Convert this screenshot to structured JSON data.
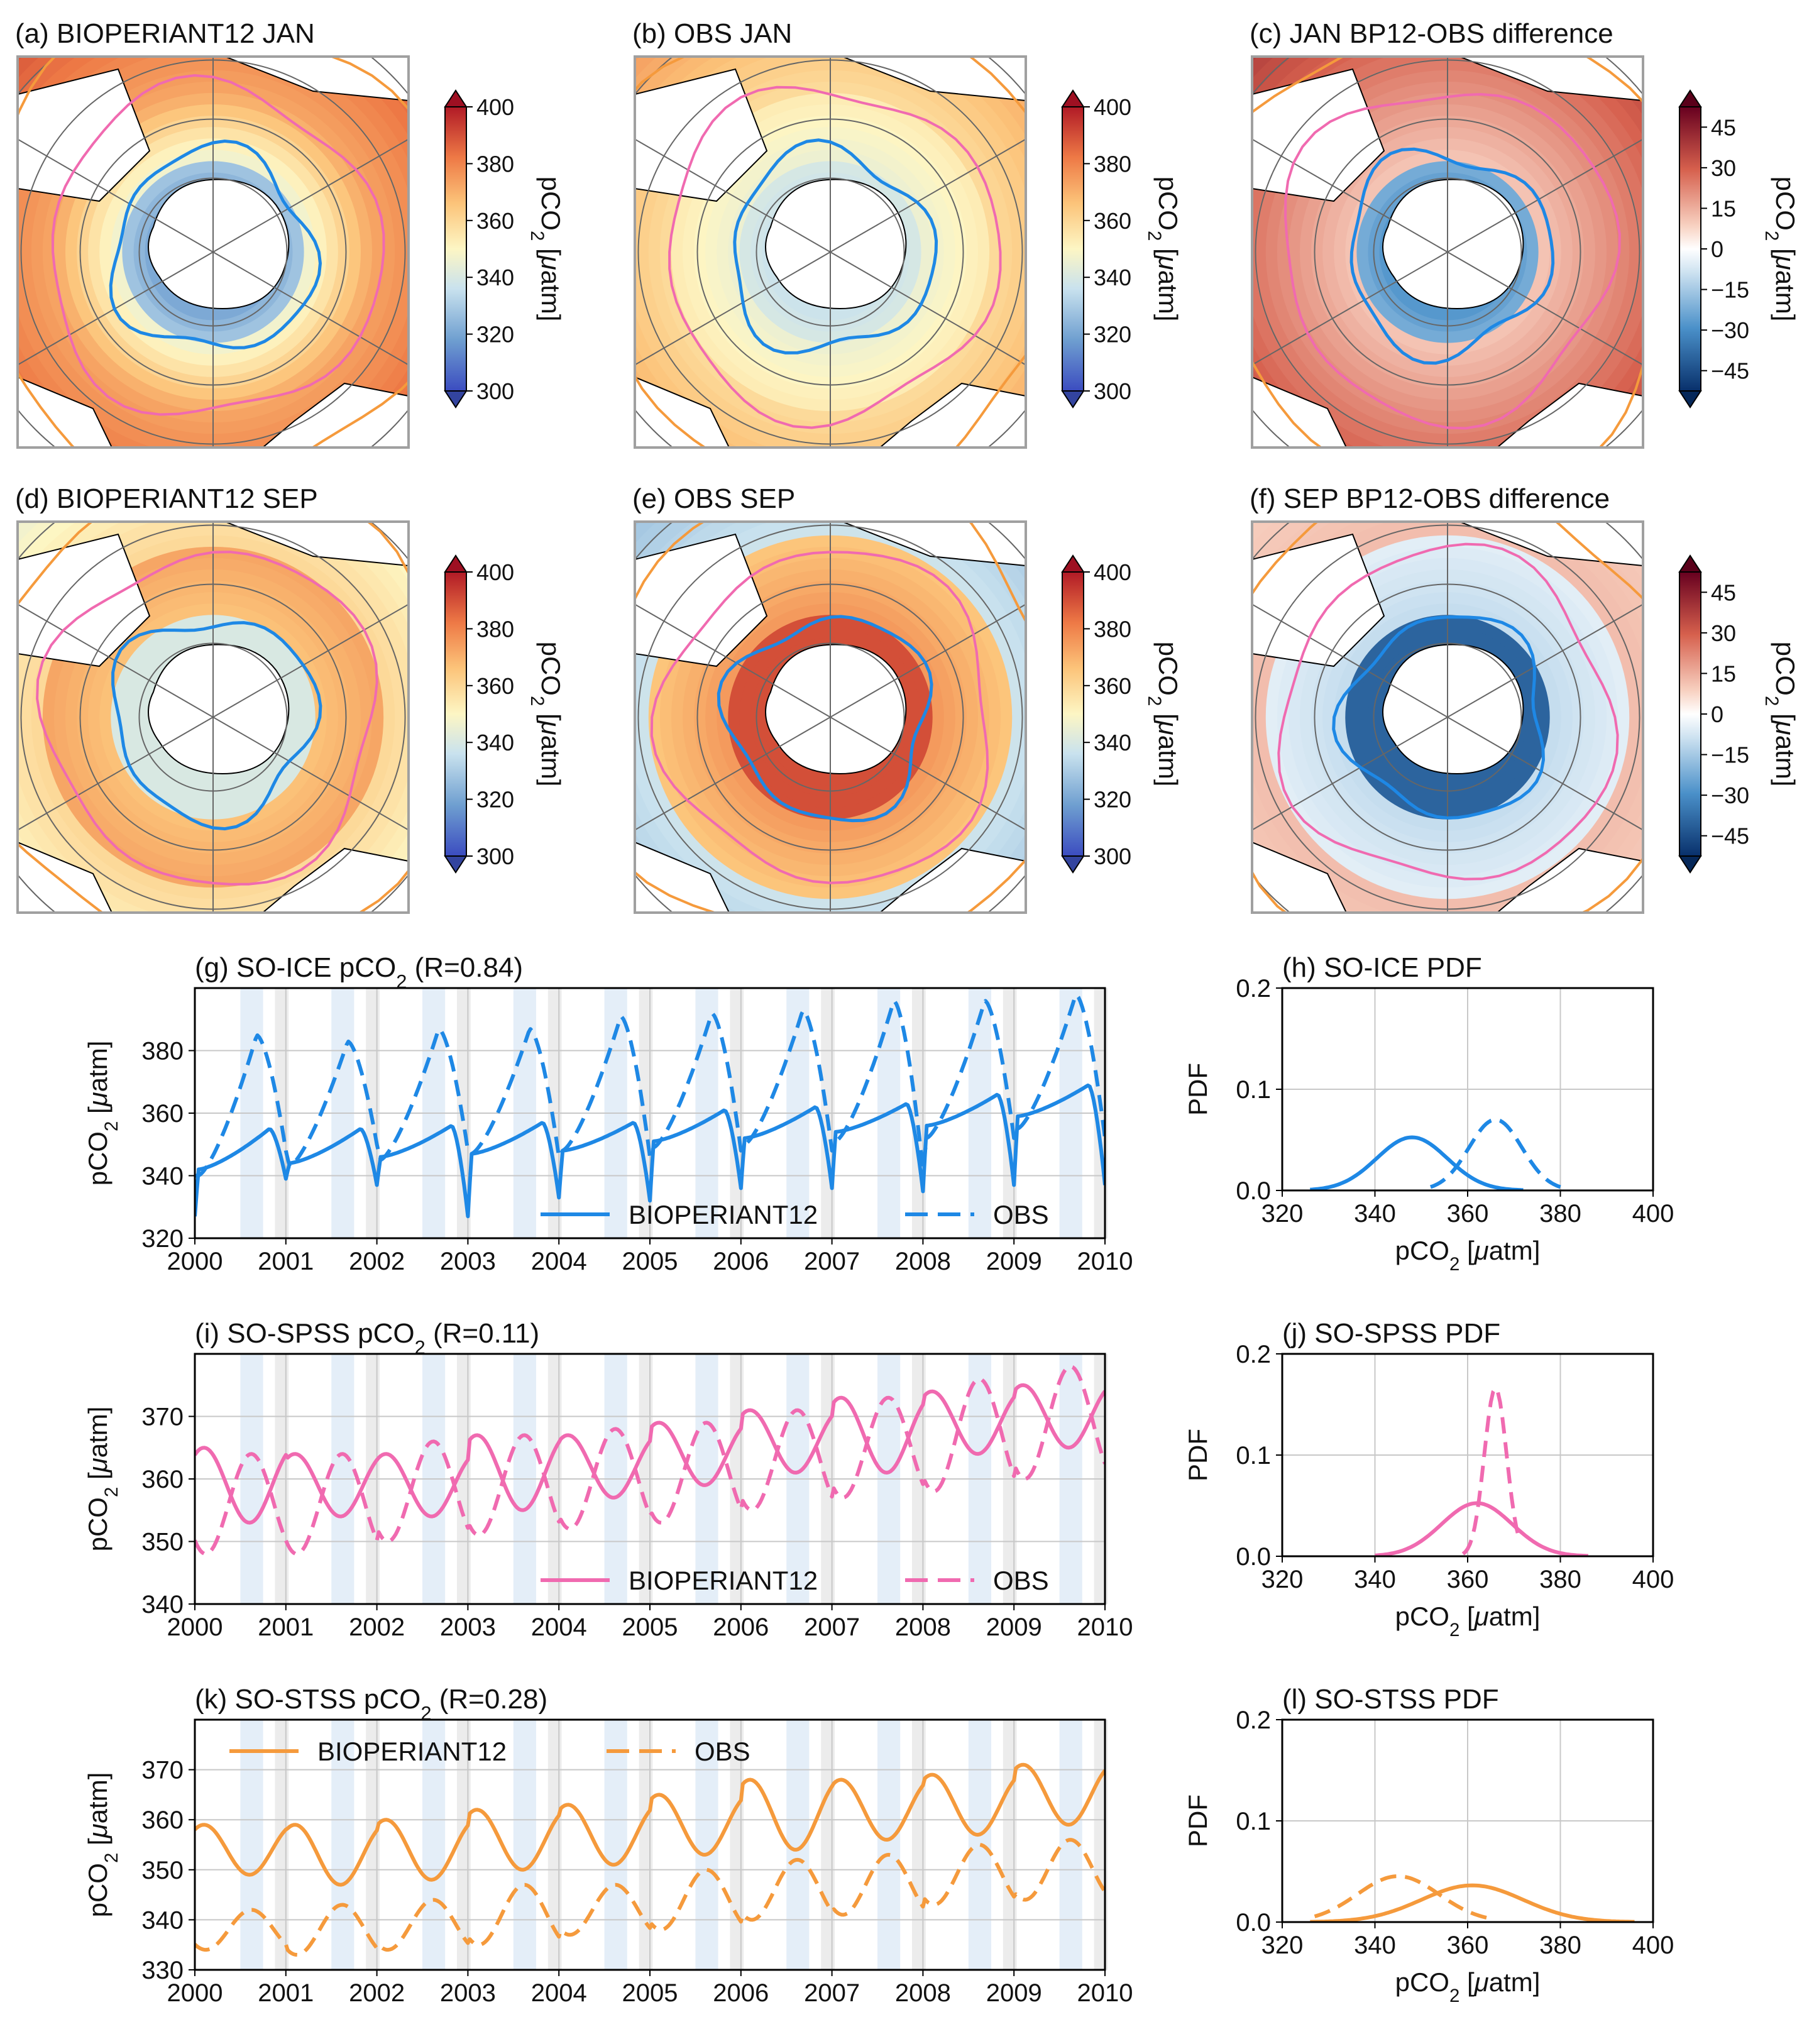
{
  "colors": {
    "ice": "#1e88e5",
    "spss": "#f06ab0",
    "stss": "#f59a3c",
    "grid": "#c8c8c8",
    "axis": "#000000",
    "land": "#ffffff",
    "frame": "#a0a0a0",
    "jan_shade": "#e4eef8",
    "sep_shade": "#ececec"
  },
  "units": {
    "mu": "μ"
  },
  "maps": [
    {
      "id": "a",
      "title": "(a) BIOPERIANT12 JAN",
      "cbar_label": "pCO2 [μatm]",
      "cbar_ticks": [
        "400",
        "380",
        "360",
        "340",
        "320",
        "300"
      ],
      "cmap": "seq",
      "field": "bp12_jan"
    },
    {
      "id": "b",
      "title": "(b) OBS JAN",
      "cbar_label": "pCO2 [μatm]",
      "cbar_ticks": [
        "400",
        "380",
        "360",
        "340",
        "320",
        "300"
      ],
      "cmap": "seq",
      "field": "obs_jan"
    },
    {
      "id": "c",
      "title": "(c) JAN BP12-OBS difference",
      "cbar_label": "pCO2 [μatm]",
      "cbar_ticks": [
        "45",
        "30",
        "15",
        "0",
        "−15",
        "−30",
        "−45"
      ],
      "cmap": "div",
      "field": "diff_jan"
    },
    {
      "id": "d",
      "title": "(d) BIOPERIANT12 SEP",
      "cbar_label": "pCO2 [μatm]",
      "cbar_ticks": [
        "400",
        "380",
        "360",
        "340",
        "320",
        "300"
      ],
      "cmap": "seq",
      "field": "bp12_sep"
    },
    {
      "id": "e",
      "title": "(e) OBS SEP",
      "cbar_label": "pCO2 [μatm]",
      "cbar_ticks": [
        "400",
        "380",
        "360",
        "340",
        "320",
        "300"
      ],
      "cmap": "seq",
      "field": "obs_sep"
    },
    {
      "id": "f",
      "title": "(f) SEP BP12-OBS difference",
      "cbar_label": "pCO2 [μatm]",
      "cbar_ticks": [
        "45",
        "30",
        "15",
        "0",
        "−15",
        "−30",
        "−45"
      ],
      "cmap": "div",
      "field": "diff_sep"
    }
  ],
  "chart_data": [
    {
      "id": "g",
      "type": "line",
      "title": "(g) SO-ICE pCO2 (R=0.84)",
      "ylabel": "pCO2 [μatm]",
      "xlim": [
        2000,
        2010
      ],
      "ylim": [
        320,
        400
      ],
      "xticks": [
        2000,
        2001,
        2002,
        2003,
        2004,
        2005,
        2006,
        2007,
        2008,
        2009,
        2010
      ],
      "yticks": [
        320,
        340,
        360,
        380
      ],
      "legend": "bottom-right",
      "series": [
        {
          "name": "BIOPERIANT12",
          "style": "solid",
          "color": "#1e88e5",
          "base": [
            342,
            344,
            346,
            347,
            348,
            351,
            352,
            354,
            356,
            359
          ],
          "amp": [
            13,
            11,
            10,
            10,
            9,
            10,
            10,
            9,
            10,
            10
          ],
          "phase": 0.82,
          "min": [
            327,
            339,
            337,
            327,
            333,
            332,
            336,
            336,
            335,
            337
          ]
        },
        {
          "name": "OBS",
          "style": "dashed",
          "color": "#1e88e5",
          "base": [
            340,
            343,
            345,
            347,
            348,
            349,
            350,
            351,
            352,
            355
          ],
          "amp": [
            45,
            40,
            42,
            40,
            43,
            43,
            43,
            45,
            44,
            43
          ],
          "phase": 0.68,
          "min": [
            340,
            348,
            350,
            348,
            346,
            346,
            348,
            348,
            342,
            352
          ]
        }
      ]
    },
    {
      "id": "h",
      "type": "line",
      "title": "(h) SO-ICE PDF",
      "xlabel": "pCO2 [μatm]",
      "ylabel": "PDF",
      "xlim": [
        320,
        400
      ],
      "ylim": [
        0,
        0.2
      ],
      "xticks": [
        320,
        340,
        360,
        380,
        400
      ],
      "yticks": [
        "0.0",
        "0.1",
        "0.2"
      ],
      "series": [
        {
          "name": "BIOPERIANT12",
          "style": "solid",
          "color": "#1e88e5",
          "mean": 348,
          "sd": 7.6,
          "range": [
            326,
            372
          ]
        },
        {
          "name": "OBS",
          "style": "dashed",
          "color": "#1e88e5",
          "mean": 366,
          "sd": 5.7,
          "range": [
            352,
            381
          ]
        }
      ]
    },
    {
      "id": "i",
      "type": "line",
      "title": "(i) SO-SPSS pCO2 (R=0.11)",
      "ylabel": "pCO2 [μatm]",
      "xlim": [
        2000,
        2010
      ],
      "ylim": [
        340,
        380
      ],
      "xticks": [
        2000,
        2001,
        2002,
        2003,
        2004,
        2005,
        2006,
        2007,
        2008,
        2009,
        2010
      ],
      "yticks": [
        340,
        350,
        360,
        370
      ],
      "legend": "bottom-right",
      "series": [
        {
          "name": "BIOPERIANT12",
          "style": "solid",
          "color": "#f06ab0",
          "base": [
            359,
            359,
            359,
            361,
            362,
            364,
            366,
            367,
            369,
            370
          ],
          "amp": [
            6,
            5,
            5,
            6,
            5,
            5,
            5,
            6,
            5,
            5
          ],
          "phase": 0.1
        },
        {
          "name": "OBS",
          "style": "dashed",
          "color": "#f06ab0",
          "base": [
            356,
            356,
            358,
            359,
            360,
            361,
            363,
            365,
            367,
            369
          ],
          "amp": [
            8,
            8,
            8,
            8,
            8,
            8,
            8,
            8,
            9,
            9
          ],
          "phase": 0.62
        }
      ]
    },
    {
      "id": "j",
      "type": "line",
      "title": "(j) SO-SPSS PDF",
      "xlabel": "pCO2 [μatm]",
      "ylabel": "PDF",
      "xlim": [
        320,
        400
      ],
      "ylim": [
        0,
        0.2
      ],
      "xticks": [
        320,
        340,
        360,
        380,
        400
      ],
      "yticks": [
        "0.0",
        "0.1",
        "0.2"
      ],
      "series": [
        {
          "name": "BIOPERIANT12",
          "style": "solid",
          "color": "#f06ab0",
          "mean": 362,
          "sd": 7.6,
          "range": [
            340,
            386
          ]
        },
        {
          "name": "OBS",
          "style": "dashed",
          "color": "#f06ab0",
          "mean": 366,
          "sd": 2.4,
          "range": [
            359,
            371
          ]
        }
      ]
    },
    {
      "id": "k",
      "type": "line",
      "title": "(k) SO-STSS pCO2 (R=0.28)",
      "ylabel": "pCO2 [μatm]",
      "xlim": [
        2000,
        2010
      ],
      "ylim": [
        330,
        380
      ],
      "xticks": [
        2000,
        2001,
        2002,
        2003,
        2004,
        2005,
        2006,
        2007,
        2008,
        2009,
        2010
      ],
      "yticks": [
        330,
        340,
        350,
        360,
        370
      ],
      "legend": "top-left",
      "series": [
        {
          "name": "BIOPERIANT12",
          "style": "solid",
          "color": "#f59a3c",
          "base": [
            354,
            353,
            354,
            356,
            357,
            359,
            361,
            362,
            363,
            365
          ],
          "amp": [
            5,
            6,
            6,
            6,
            6,
            6,
            7,
            6,
            6,
            6
          ],
          "phase": 0.1
        },
        {
          "name": "OBS",
          "style": "dashed",
          "color": "#f59a3c",
          "base": [
            338,
            338,
            339,
            341,
            342,
            344,
            346,
            347,
            349,
            350
          ],
          "amp": [
            4,
            5,
            5,
            6,
            5,
            6,
            6,
            6,
            6,
            6
          ],
          "phase": 0.62
        }
      ]
    },
    {
      "id": "l",
      "type": "line",
      "title": "(l) SO-STSS PDF",
      "xlabel": "pCO2 [μatm]",
      "ylabel": "PDF",
      "xlim": [
        320,
        400
      ],
      "ylim": [
        0,
        0.2
      ],
      "xticks": [
        320,
        340,
        360,
        380,
        400
      ],
      "yticks": [
        "0.0",
        "0.1",
        "0.2"
      ],
      "series": [
        {
          "name": "BIOPERIANT12",
          "style": "solid",
          "color": "#f59a3c",
          "mean": 361,
          "sd": 11,
          "range": [
            326,
            396
          ]
        },
        {
          "name": "OBS",
          "style": "dashed",
          "color": "#f59a3c",
          "mean": 345,
          "sd": 8.8,
          "range": [
            327,
            365
          ]
        }
      ]
    }
  ]
}
